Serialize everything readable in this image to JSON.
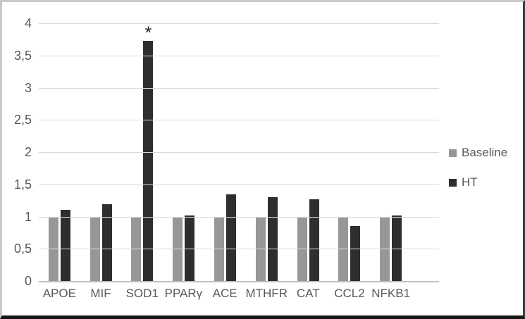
{
  "chart_data": {
    "type": "bar",
    "title": "",
    "xlabel": "",
    "ylabel": "",
    "categories": [
      "APOE",
      "MIF",
      "SOD1",
      "PPARγ",
      "ACE",
      "MTHFR",
      "CAT",
      "CCL2",
      "NFKB1"
    ],
    "series": [
      {
        "name": "Baseline",
        "color": "#979797",
        "values": [
          1.0,
          1.0,
          1.0,
          1.0,
          1.0,
          1.0,
          1.0,
          1.0,
          1.0
        ]
      },
      {
        "name": "HT",
        "color": "#2e2e2e",
        "values": [
          1.1,
          1.19,
          3.73,
          1.02,
          1.34,
          1.3,
          1.27,
          0.85,
          1.02
        ]
      }
    ],
    "annotations": [
      {
        "text": "*",
        "category": "SOD1",
        "series": "HT"
      }
    ],
    "ylim": [
      0,
      4
    ],
    "yticks": [
      0,
      0.5,
      1,
      1.5,
      2,
      2.5,
      3,
      3.5,
      4
    ],
    "ytick_labels": [
      "0",
      "0,5",
      "1",
      "1,5",
      "2",
      "2,5",
      "3",
      "3,5",
      "4"
    ],
    "grid": true,
    "legend_position": "right",
    "decimal_separator": ","
  },
  "colors": {
    "gridline": "#d9d9d9",
    "axis_line": "#bfbfbf",
    "tick_text": "#595959",
    "baseline_series": "#979797",
    "ht_series": "#2e2e2e",
    "annotation": "#1f1f1f"
  }
}
